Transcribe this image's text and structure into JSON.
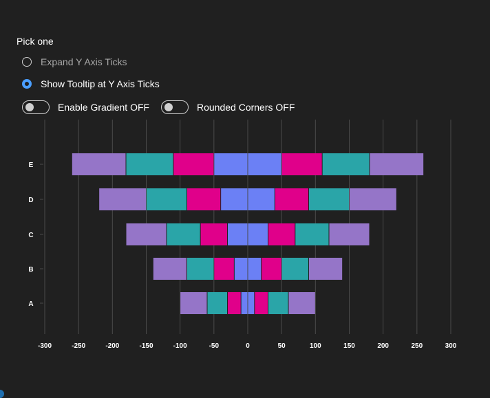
{
  "controls": {
    "group_label": "Pick one",
    "radios": [
      {
        "label": "Expand Y Axis Ticks",
        "checked": false
      },
      {
        "label": "Show Tooltip at Y Axis Ticks",
        "checked": true
      }
    ],
    "toggles": [
      {
        "label": "Enable Gradient OFF",
        "on": false
      },
      {
        "label": "Rounded Corners OFF",
        "on": false
      }
    ]
  },
  "colors": {
    "background": "#202020",
    "purple": "#9575c8",
    "teal": "#2aa5a8",
    "magenta": "#e0008a",
    "blue": "#6b80f5",
    "grid": "#4a4a4a",
    "axis_text": "#ffffff",
    "accent": "#4a9eff"
  },
  "chart_data": {
    "type": "bar",
    "orientation": "horizontal",
    "stacking": "diverging",
    "categories": [
      "A",
      "B",
      "C",
      "D",
      "E"
    ],
    "xlim": [
      -300,
      300
    ],
    "x_ticks": [
      -300,
      -250,
      -200,
      -150,
      -100,
      -50,
      0,
      50,
      100,
      150,
      200,
      250,
      300
    ],
    "grid": true,
    "legend": "none",
    "series": [
      {
        "values": [
          10,
          20,
          30,
          40,
          50
        ],
        "color": "#6b80f5"
      },
      {
        "values": [
          20,
          30,
          40,
          50,
          60
        ],
        "color": "#e0008a"
      },
      {
        "values": [
          30,
          40,
          50,
          60,
          70
        ],
        "color": "#2aa5a8"
      },
      {
        "values": [
          40,
          50,
          60,
          70,
          80
        ],
        "color": "#9575c8"
      }
    ]
  }
}
